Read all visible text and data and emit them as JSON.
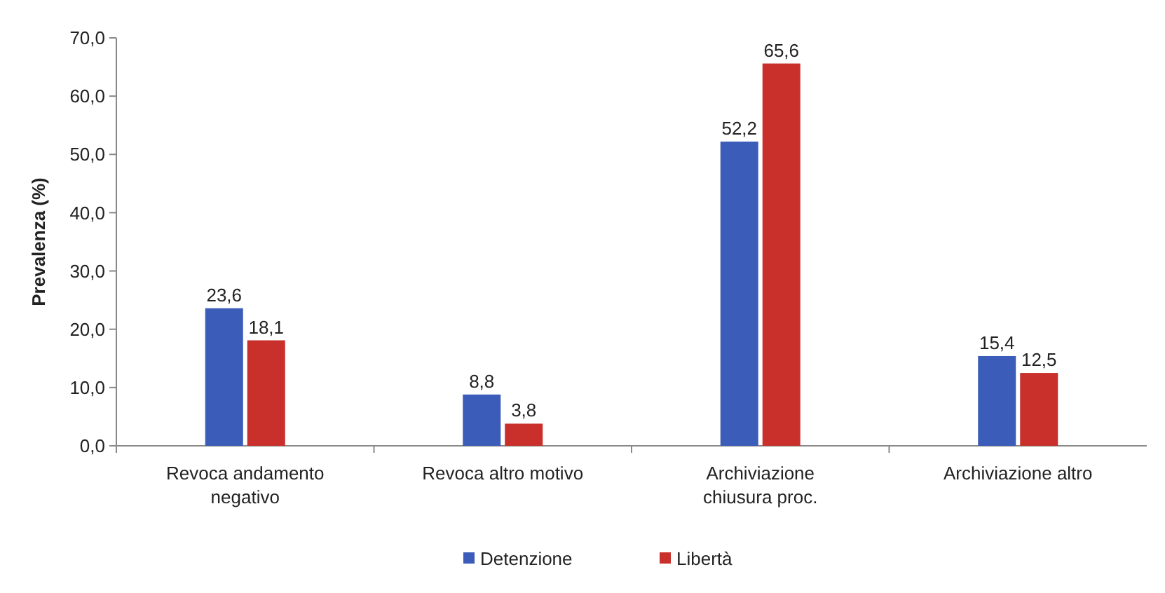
{
  "chart_data": {
    "type": "bar",
    "ylabel": "Prevalenza (%)",
    "categories": [
      "Revoca andamento negativo",
      "Revoca altro motivo",
      "Archiviazione chiusura proc.",
      "Archiviazione altro"
    ],
    "series": [
      {
        "name": "Detenzione",
        "color": "#3b5cb8",
        "values": [
          23.6,
          8.8,
          52.2,
          15.4
        ],
        "value_labels": [
          "23,6",
          "8,8",
          "52,2",
          "15,4"
        ]
      },
      {
        "name": "Libertà",
        "color": "#c9302c",
        "values": [
          18.1,
          3.8,
          65.6,
          12.5
        ],
        "value_labels": [
          "18,1",
          "3,8",
          "65,6",
          "12,5"
        ]
      }
    ],
    "ylim": [
      0,
      70
    ],
    "yticks": [
      {
        "value": 0,
        "label": "0,0"
      },
      {
        "value": 10,
        "label": "10,0"
      },
      {
        "value": 20,
        "label": "20,0"
      },
      {
        "value": 30,
        "label": "30,0"
      },
      {
        "value": 40,
        "label": "40,0"
      },
      {
        "value": 50,
        "label": "50,0"
      },
      {
        "value": 60,
        "label": "60,0"
      },
      {
        "value": 70,
        "label": "70,0"
      }
    ],
    "grid": false,
    "legend": "bottom"
  }
}
